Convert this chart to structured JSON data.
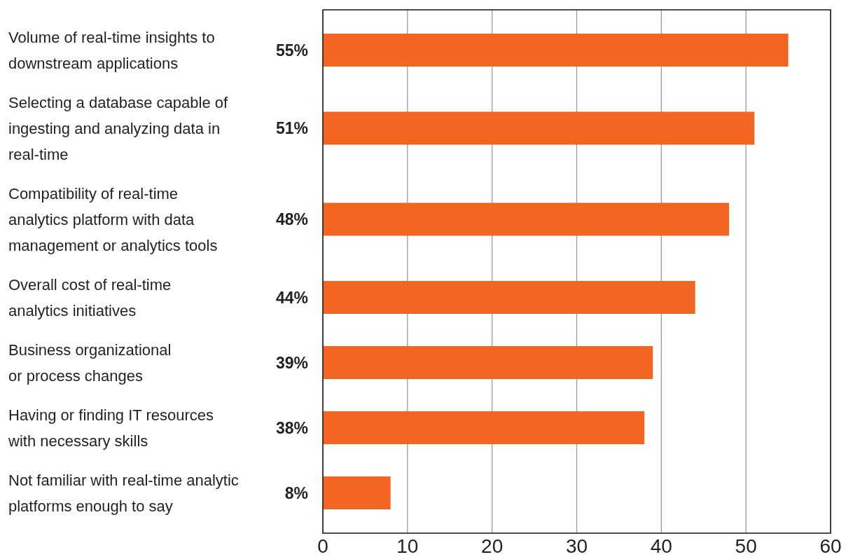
{
  "chart_data": {
    "type": "bar",
    "orientation": "horizontal",
    "categories": [
      "Volume of real-time insights to\ndownstream applications",
      "Selecting a database capable of\ningesting and analyzing data in\nreal-time",
      "Compatibility of real-time\nanalytics platform with data\nmanagement or analytics tools",
      "Overall cost of real-time\nanalytics initiatives",
      "Business organizational\nor process changes",
      "Having or finding IT resources\nwith necessary skills",
      "Not familiar with real-time analytic\nplatforms enough to say"
    ],
    "values": [
      55,
      51,
      48,
      44,
      39,
      38,
      8
    ],
    "color": "#f26522",
    "value_labels": [
      "55%",
      "51%",
      "48%",
      "44%",
      "39%",
      "38%",
      "8%"
    ],
    "xlim": [
      0,
      60
    ],
    "xticks": [
      0,
      10,
      20,
      30,
      40,
      50,
      60
    ],
    "grid": "x"
  }
}
